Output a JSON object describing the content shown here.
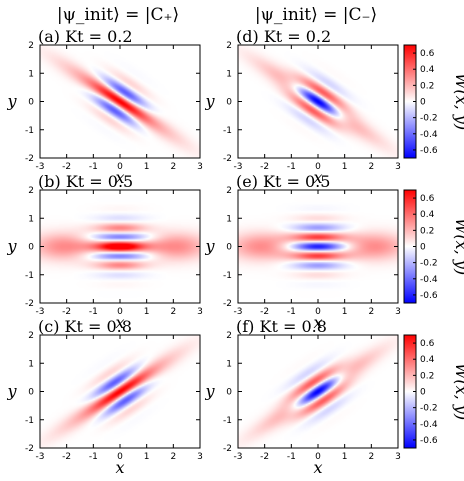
{
  "column_titles": [
    "|ψ_init⟩ = |C₊⟩",
    "|ψ_init⟩ = |C₋⟩"
  ],
  "colorbar": {
    "label": "W(x, y)",
    "range": [
      -0.7,
      0.7
    ],
    "ticks": [
      "0.6",
      "0.4",
      "0.2",
      "0",
      "-0.2",
      "-0.4",
      "-0.6"
    ],
    "tick_values": [
      0.6,
      0.4,
      0.2,
      0,
      -0.2,
      -0.4,
      -0.6
    ],
    "colors": {
      "negative": "#0000ff",
      "zero": "#ffffff",
      "positive": "#ff0000"
    }
  },
  "chart_data": [
    {
      "type": "heatmap",
      "panel": "a",
      "label": "(a) Kt = 0.2",
      "xlabel": "x",
      "ylabel": "y",
      "xlim": [
        -3,
        3
      ],
      "ylim": [
        -2,
        2
      ],
      "x_ticks": [
        "-3",
        "-2",
        "-1",
        "0",
        "1",
        "2",
        "3"
      ],
      "y_ticks": [
        "2",
        "1",
        "0",
        "-1",
        "-2"
      ],
      "kt": 0.2,
      "state": "C+"
    },
    {
      "type": "heatmap",
      "panel": "b",
      "label": "(b) Kt = 0.5",
      "xlabel": "x",
      "ylabel": "y",
      "xlim": [
        -3,
        3
      ],
      "ylim": [
        -2,
        2
      ],
      "x_ticks": [
        "-3",
        "-2",
        "-1",
        "0",
        "1",
        "2",
        "3"
      ],
      "y_ticks": [
        "2",
        "1",
        "0",
        "-1",
        "-2"
      ],
      "kt": 0.5,
      "state": "C+"
    },
    {
      "type": "heatmap",
      "panel": "c",
      "label": "(c) Kt = 0.8",
      "xlabel": "x",
      "ylabel": "y",
      "xlim": [
        -3,
        3
      ],
      "ylim": [
        -2,
        2
      ],
      "x_ticks": [
        "-3",
        "-2",
        "-1",
        "0",
        "1",
        "2",
        "3"
      ],
      "y_ticks": [
        "2",
        "1",
        "0",
        "-1",
        "-2"
      ],
      "kt": 0.8,
      "state": "C+"
    },
    {
      "type": "heatmap",
      "panel": "d",
      "label": "(d) Kt = 0.2",
      "xlabel": "x",
      "ylabel": "y",
      "xlim": [
        -3,
        3
      ],
      "ylim": [
        -2,
        2
      ],
      "x_ticks": [
        "-3",
        "-2",
        "-1",
        "0",
        "1",
        "2",
        "3"
      ],
      "y_ticks": [
        "2",
        "1",
        "0",
        "-1",
        "-2"
      ],
      "kt": 0.2,
      "state": "C-"
    },
    {
      "type": "heatmap",
      "panel": "e",
      "label": "(e) Kt = 0.5",
      "xlabel": "x",
      "ylabel": "y",
      "xlim": [
        -3,
        3
      ],
      "ylim": [
        -2,
        2
      ],
      "x_ticks": [
        "-3",
        "-2",
        "-1",
        "0",
        "1",
        "2",
        "3"
      ],
      "y_ticks": [
        "2",
        "1",
        "0",
        "-1",
        "-2"
      ],
      "kt": 0.5,
      "state": "C-"
    },
    {
      "type": "heatmap",
      "panel": "f",
      "label": "(f) Kt = 0.8",
      "xlabel": "x",
      "ylabel": "y",
      "xlim": [
        -3,
        3
      ],
      "ylim": [
        -2,
        2
      ],
      "x_ticks": [
        "-3",
        "-2",
        "-1",
        "0",
        "1",
        "2",
        "3"
      ],
      "y_ticks": [
        "2",
        "1",
        "0",
        "-1",
        "-2"
      ],
      "kt": 0.8,
      "state": "C-"
    }
  ]
}
